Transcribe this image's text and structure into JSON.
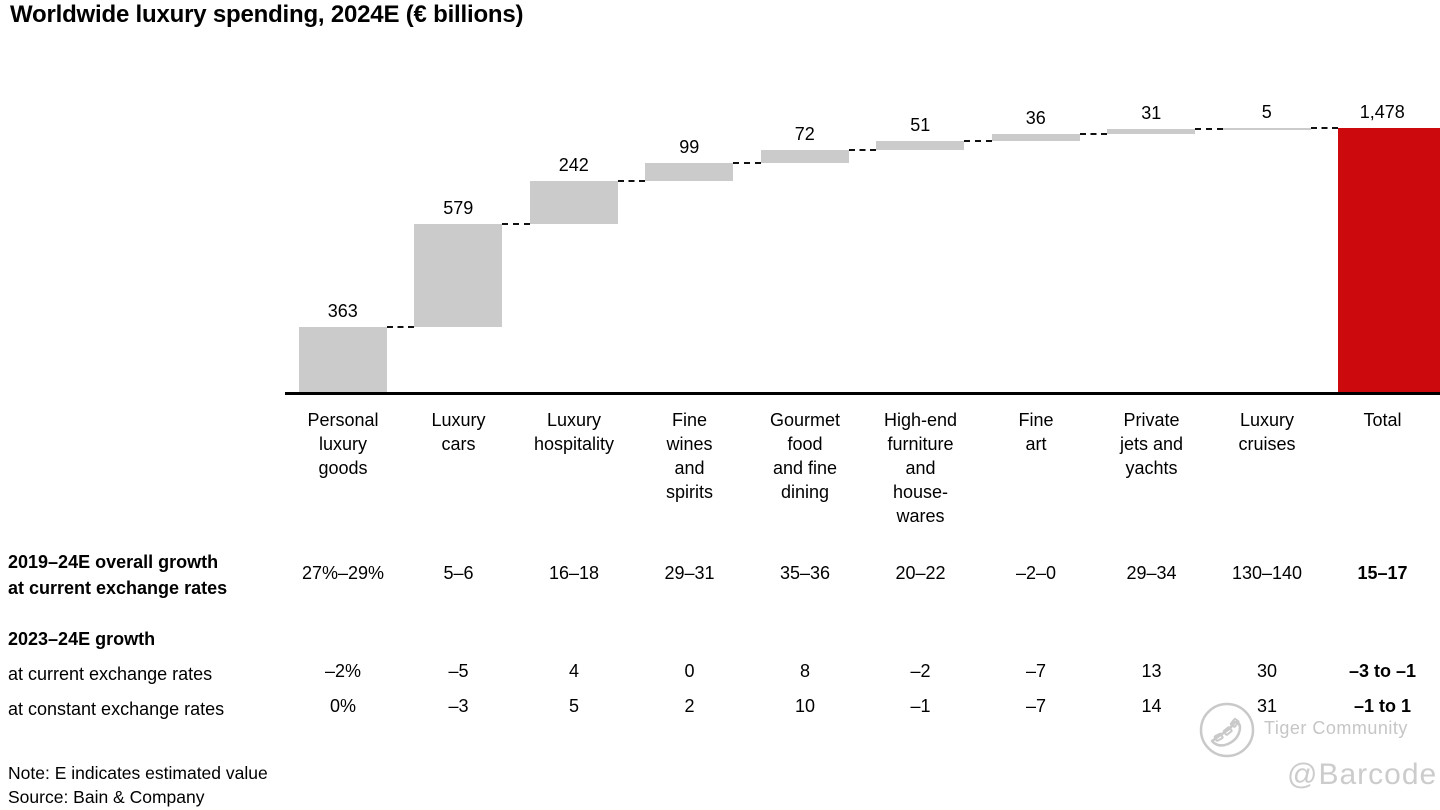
{
  "title": "Worldwide luxury spending, 2024E (€ billions)",
  "chart_data": {
    "type": "bar",
    "subtype": "waterfall",
    "unit": "€ billions",
    "categories": [
      "Personal\nluxury\ngoods",
      "Luxury\ncars",
      "Luxury\nhospitality",
      "Fine\nwines\nand\nspirits",
      "Gourmet\nfood\nand fine\ndining",
      "High-end\nfurniture\nand\nhouse-\nwares",
      "Fine\nart",
      "Private\njets and\nyachts",
      "Luxury\ncruises"
    ],
    "values": [
      363,
      579,
      242,
      99,
      72,
      51,
      36,
      31,
      5
    ],
    "value_labels": [
      "363",
      "579",
      "242",
      "99",
      "72",
      "51",
      "36",
      "31",
      "5"
    ],
    "total": {
      "label": "Total",
      "value": 1478,
      "display": "1,478"
    },
    "ylim": [
      0,
      1478
    ],
    "grid": false,
    "legend": "none",
    "colors": {
      "bar": "#cbcbcb",
      "total": "#cc0a0e",
      "axis": "#000000"
    }
  },
  "table": {
    "rows": [
      {
        "label": "2019–24E overall growth\nat current exchange rates",
        "label_bold": true,
        "values": [
          "27%–29%",
          "5–6",
          "16–18",
          "29–31",
          "35–36",
          "20–22",
          "–2–0",
          "29–34",
          "130–140",
          "15–17"
        ]
      },
      {
        "label": "2023–24E growth",
        "label_bold": true,
        "values": []
      },
      {
        "label": "at current exchange rates",
        "label_bold": false,
        "values": [
          "–2%",
          "–5",
          "4",
          "0",
          "8",
          "–2",
          "–7",
          "13",
          "30",
          "–3 to –1"
        ]
      },
      {
        "label": "at constant exchange rates",
        "label_bold": false,
        "values": [
          "0%",
          "–3",
          "5",
          "2",
          "10",
          "–1",
          "–7",
          "14",
          "31",
          "–1 to 1"
        ]
      }
    ]
  },
  "footer": {
    "note": "Note: E indicates estimated value",
    "source": "Source: Bain & Company"
  },
  "watermark": {
    "community": "Tiger Community",
    "handle": "@Barcode"
  }
}
